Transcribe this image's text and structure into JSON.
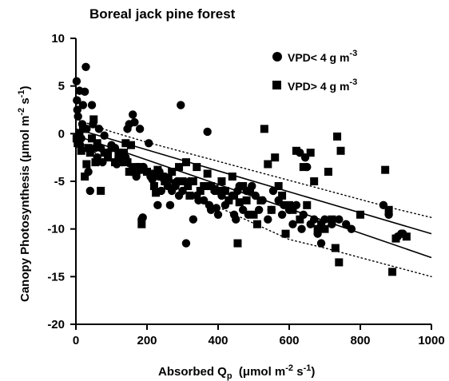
{
  "chart_data": {
    "type": "scatter",
    "title": "Boreal jack pine forest",
    "xlabel": "Absorbed Q_p (μmol m^-2 s^-1)",
    "ylabel": "Canopy Photosynthesis (μmol m^-2 s^-1)",
    "xlim": [
      0,
      1000
    ],
    "ylim": [
      -20,
      10
    ],
    "xticks": [
      "0",
      "200",
      "400",
      "600",
      "800",
      "1000"
    ],
    "yticks": [
      "10",
      "5",
      "0",
      "-5",
      "-10",
      "-15",
      "-20"
    ],
    "grid": false,
    "legend_position": "top-right",
    "series": [
      {
        "name": "VPD< 4 g m-3",
        "marker": "circle",
        "points": [
          [
            2,
            5.5
          ],
          [
            3,
            3.5
          ],
          [
            4,
            2.5
          ],
          [
            6,
            1.8
          ],
          [
            8,
            -0.2
          ],
          [
            10,
            4.5
          ],
          [
            12,
            -1.2
          ],
          [
            15,
            -0.5
          ],
          [
            18,
            1.0
          ],
          [
            20,
            3.0
          ],
          [
            25,
            4.4
          ],
          [
            28,
            7.0
          ],
          [
            30,
            0.5
          ],
          [
            35,
            -4.0
          ],
          [
            40,
            -6.0
          ],
          [
            45,
            3.0
          ],
          [
            48,
            1.0
          ],
          [
            55,
            -1.5
          ],
          [
            60,
            -2.5
          ],
          [
            65,
            0.5
          ],
          [
            70,
            -1.5
          ],
          [
            75,
            -3.0
          ],
          [
            80,
            -0.2
          ],
          [
            90,
            -2.0
          ],
          [
            100,
            -1.2
          ],
          [
            110,
            -1.5
          ],
          [
            115,
            -3.2
          ],
          [
            120,
            -2.5
          ],
          [
            130,
            -3.0
          ],
          [
            140,
            -2.5
          ],
          [
            145,
            0.5
          ],
          [
            150,
            1.0
          ],
          [
            155,
            -4.0
          ],
          [
            160,
            2.0
          ],
          [
            165,
            1.2
          ],
          [
            170,
            -4.5
          ],
          [
            175,
            -3.5
          ],
          [
            180,
            0.5
          ],
          [
            185,
            -9.0
          ],
          [
            188,
            -8.8
          ],
          [
            190,
            -3.5
          ],
          [
            200,
            -4.0
          ],
          [
            205,
            -1.0
          ],
          [
            210,
            -4.5
          ],
          [
            215,
            -4.8
          ],
          [
            220,
            -4.5
          ],
          [
            230,
            -7.5
          ],
          [
            235,
            -4.0
          ],
          [
            240,
            -6.0
          ],
          [
            245,
            -4.5
          ],
          [
            250,
            -4.5
          ],
          [
            258,
            -5.5
          ],
          [
            265,
            -7.5
          ],
          [
            270,
            -6.0
          ],
          [
            280,
            -5.5
          ],
          [
            285,
            -5.0
          ],
          [
            290,
            -6.5
          ],
          [
            295,
            3.0
          ],
          [
            300,
            -6.0
          ],
          [
            310,
            -11.5
          ],
          [
            320,
            -5.0
          ],
          [
            330,
            -9.0
          ],
          [
            340,
            -6.5
          ],
          [
            345,
            -7.0
          ],
          [
            360,
            -7.0
          ],
          [
            370,
            0.2
          ],
          [
            375,
            -7.5
          ],
          [
            380,
            -8.0
          ],
          [
            390,
            -6.0
          ],
          [
            395,
            -7.8
          ],
          [
            400,
            -8.5
          ],
          [
            410,
            -6.5
          ],
          [
            420,
            -7.5
          ],
          [
            430,
            -7.0
          ],
          [
            440,
            -6.5
          ],
          [
            445,
            -8.5
          ],
          [
            450,
            -9.0
          ],
          [
            455,
            -6.0
          ],
          [
            460,
            -5.5
          ],
          [
            470,
            -8.0
          ],
          [
            480,
            -6.0
          ],
          [
            485,
            -8.5
          ],
          [
            495,
            -5.5
          ],
          [
            505,
            -6.5
          ],
          [
            515,
            -8.0
          ],
          [
            525,
            -7.0
          ],
          [
            540,
            -9.0
          ],
          [
            550,
            -8.0
          ],
          [
            555,
            -6.0
          ],
          [
            570,
            -7.0
          ],
          [
            580,
            -8.5
          ],
          [
            585,
            -7.5
          ],
          [
            600,
            -8.0
          ],
          [
            610,
            -9.5
          ],
          [
            620,
            -7.5
          ],
          [
            630,
            -2.0
          ],
          [
            635,
            -10.0
          ],
          [
            640,
            -8.5
          ],
          [
            645,
            -2.5
          ],
          [
            650,
            -3.5
          ],
          [
            660,
            -9.5
          ],
          [
            670,
            -9.0
          ],
          [
            680,
            -10.5
          ],
          [
            690,
            -11.5
          ],
          [
            700,
            -9.0
          ],
          [
            720,
            -9.5
          ],
          [
            740,
            -9.0
          ],
          [
            760,
            -9.5
          ],
          [
            775,
            -10.0
          ],
          [
            865,
            -7.5
          ],
          [
            880,
            -8.5
          ],
          [
            905,
            -10.8
          ],
          [
            915,
            -10.5
          ],
          [
            920,
            -10.5
          ]
        ]
      },
      {
        "name": "VPD> 4 g m-3",
        "marker": "square",
        "points": [
          [
            2,
            -0.5
          ],
          [
            5,
            -1.0
          ],
          [
            10,
            0.0
          ],
          [
            15,
            -1.8
          ],
          [
            20,
            0.5
          ],
          [
            25,
            -4.5
          ],
          [
            30,
            -3.2
          ],
          [
            35,
            -1.5
          ],
          [
            40,
            -2.0
          ],
          [
            45,
            -0.5
          ],
          [
            50,
            1.5
          ],
          [
            55,
            -3.0
          ],
          [
            60,
            -1.0
          ],
          [
            70,
            -6.0
          ],
          [
            80,
            -2.0
          ],
          [
            90,
            -2.5
          ],
          [
            100,
            -1.5
          ],
          [
            110,
            -3.0
          ],
          [
            120,
            -2.0
          ],
          [
            130,
            -2.5
          ],
          [
            135,
            -2.0
          ],
          [
            140,
            -1.0
          ],
          [
            145,
            -3.0
          ],
          [
            150,
            -4.0
          ],
          [
            155,
            -1.2
          ],
          [
            160,
            -3.5
          ],
          [
            170,
            -4.0
          ],
          [
            180,
            -3.5
          ],
          [
            185,
            -9.5
          ],
          [
            190,
            -3.8
          ],
          [
            200,
            -4.0
          ],
          [
            210,
            -4.2
          ],
          [
            215,
            -4.5
          ],
          [
            220,
            -5.5
          ],
          [
            225,
            -6.2
          ],
          [
            230,
            -3.8
          ],
          [
            240,
            -4.5
          ],
          [
            250,
            -5.0
          ],
          [
            260,
            -4.8
          ],
          [
            270,
            -4.0
          ],
          [
            280,
            -5.2
          ],
          [
            290,
            -3.5
          ],
          [
            300,
            -5.0
          ],
          [
            310,
            -3.0
          ],
          [
            315,
            -5.5
          ],
          [
            320,
            -6.5
          ],
          [
            330,
            -5.0
          ],
          [
            340,
            -3.5
          ],
          [
            350,
            -6.0
          ],
          [
            360,
            -5.5
          ],
          [
            370,
            -4.2
          ],
          [
            380,
            -5.5
          ],
          [
            390,
            -5.8
          ],
          [
            400,
            -6.0
          ],
          [
            410,
            -5.0
          ],
          [
            420,
            -6.0
          ],
          [
            430,
            -7.0
          ],
          [
            440,
            -4.5
          ],
          [
            445,
            -6.5
          ],
          [
            455,
            -11.5
          ],
          [
            460,
            -7.2
          ],
          [
            470,
            -5.5
          ],
          [
            480,
            -7.0
          ],
          [
            490,
            -6.0
          ],
          [
            500,
            -8.5
          ],
          [
            510,
            -9.5
          ],
          [
            520,
            -7.0
          ],
          [
            530,
            0.5
          ],
          [
            540,
            -3.2
          ],
          [
            550,
            -8.0
          ],
          [
            560,
            -2.5
          ],
          [
            570,
            -5.5
          ],
          [
            580,
            -6.5
          ],
          [
            590,
            -10.5
          ],
          [
            600,
            -7.5
          ],
          [
            610,
            -8.0
          ],
          [
            620,
            -1.8
          ],
          [
            630,
            -9.0
          ],
          [
            640,
            -3.5
          ],
          [
            650,
            -7.5
          ],
          [
            660,
            -2.0
          ],
          [
            670,
            -5.0
          ],
          [
            680,
            -10.0
          ],
          [
            690,
            -9.5
          ],
          [
            700,
            -10.0
          ],
          [
            710,
            -4.0
          ],
          [
            720,
            -9.0
          ],
          [
            730,
            -12.0
          ],
          [
            735,
            -0.3
          ],
          [
            740,
            -13.5
          ],
          [
            745,
            -1.8
          ],
          [
            800,
            -8.5
          ],
          [
            870,
            -3.8
          ],
          [
            880,
            -8.0
          ],
          [
            890,
            -14.5
          ],
          [
            900,
            -11.0
          ],
          [
            930,
            -10.8
          ]
        ]
      }
    ],
    "regression": {
      "lines": [
        {
          "x": [
            0,
            1000
          ],
          "y": [
            0.5,
            -10.5
          ]
        },
        {
          "x": [
            0,
            1000
          ],
          "y": [
            -0.2,
            -13.0
          ]
        }
      ],
      "confidence_bands": [
        {
          "x": [
            0,
            100,
            200,
            300,
            400,
            500,
            600,
            700,
            800,
            900,
            1000
          ],
          "y": [
            1.5,
            0.2,
            -0.9,
            -1.9,
            -2.9,
            -3.9,
            -4.9,
            -5.9,
            -6.9,
            -7.9,
            -8.8
          ]
        },
        {
          "x": [
            0,
            100,
            200,
            300,
            400,
            500,
            600,
            700,
            800,
            900,
            1000
          ],
          "y": [
            -1.2,
            -2.7,
            -4.3,
            -6.0,
            -7.7,
            -9.4,
            -11.1,
            -12.0,
            -13.0,
            -14.0,
            -15.0
          ]
        }
      ]
    }
  },
  "legend": {
    "entries": [
      {
        "marker": "circle",
        "text": "VPD< 4 g m",
        "sup": "-3"
      },
      {
        "marker": "square",
        "text": "VPD> 4 g m",
        "sup": "-3"
      }
    ]
  },
  "axes_text": {
    "x_main": "Absorbed Q",
    "x_sub": "p",
    "x_unit_open": "  (μmol m",
    "x_sup1": "-2",
    "x_mid": " s",
    "x_sup2": "-1",
    "x_close": ")",
    "y_main": "Canopy Photosynthesis (μmol m",
    "y_sup1": "-2",
    "y_mid": " s",
    "y_sup2": "-1",
    "y_close": ")"
  }
}
